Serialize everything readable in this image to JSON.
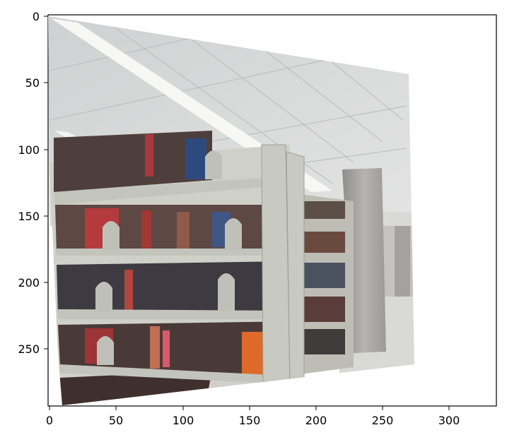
{
  "figure": {
    "x_axis": {
      "ticks": [
        "0",
        "50",
        "100",
        "150",
        "200",
        "250",
        "300"
      ]
    },
    "y_axis": {
      "ticks": [
        "0",
        "50",
        "100",
        "150",
        "200",
        "250"
      ]
    },
    "image_description": "Photo of library book stacks, perspective-warped"
  },
  "colors": {
    "background": "#ffffff",
    "ceiling": "#d9dadb",
    "light": "#f6f6f3",
    "shelf": "#c9cac3",
    "pillar": "#a7a6a2",
    "floor": "#dedfdb"
  }
}
